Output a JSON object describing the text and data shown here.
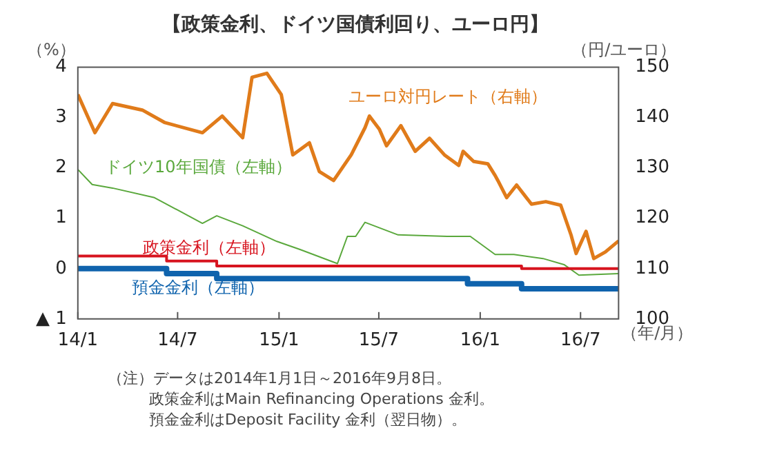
{
  "chart_data": {
    "type": "line",
    "title": "【政策金利、ドイツ国債利回り、ユーロ円】",
    "xlabel": "（年/月）",
    "ylabel": "（%）",
    "y2label": "（円/ユーロ）",
    "xlim": [
      "2014-01-01",
      "2016-09-08"
    ],
    "xticks": [
      {
        "value": "2014-01",
        "label": "14/1"
      },
      {
        "value": "2014-07",
        "label": "14/7"
      },
      {
        "value": "2015-01",
        "label": "15/1"
      },
      {
        "value": "2015-07",
        "label": "15/7"
      },
      {
        "value": "2016-01",
        "label": "16/1"
      },
      {
        "value": "2016-07",
        "label": "16/7"
      }
    ],
    "ylim": [
      -1,
      4
    ],
    "yticks": [
      {
        "value": -1,
        "label": "▲ 1"
      },
      0,
      1,
      2,
      3,
      4
    ],
    "y2lim": [
      100,
      150
    ],
    "y2ticks": [
      100,
      110,
      120,
      130,
      140,
      150
    ],
    "grid": false,
    "legend": false,
    "marker": "none",
    "series": [
      {
        "name": "ユーロ対円レート（右軸）",
        "color": "#e07b1a",
        "axis": "y2",
        "x": [
          "2014-01-01",
          "2014-02-01",
          "2014-03-05",
          "2014-04-28",
          "2014-06-08",
          "2014-08-15",
          "2014-09-20",
          "2014-10-27",
          "2014-11-13",
          "2014-12-10",
          "2015-01-05",
          "2015-01-26",
          "2015-02-25",
          "2015-03-15",
          "2015-04-10",
          "2015-05-12",
          "2015-06-06",
          "2015-06-14",
          "2015-07-02",
          "2015-07-15",
          "2015-08-10",
          "2015-09-05",
          "2015-10-01",
          "2015-10-28",
          "2015-11-23",
          "2015-12-01",
          "2015-12-20",
          "2016-01-15",
          "2016-01-28",
          "2016-02-02",
          "2016-02-18",
          "2016-03-07",
          "2016-04-03",
          "2016-04-29",
          "2016-05-26",
          "2016-06-14",
          "2016-06-23",
          "2016-07-11",
          "2016-07-25",
          "2016-08-15",
          "2016-09-08"
        ],
        "values": [
          144.6,
          137,
          142.8,
          141.5,
          139,
          137,
          140.3,
          136,
          148,
          148.8,
          144.6,
          132.6,
          135,
          129.3,
          127.5,
          132.6,
          138,
          140.3,
          137.7,
          134.4,
          138.4,
          133.3,
          135.9,
          132.6,
          130.5,
          133.3,
          131.3,
          130.8,
          128.5,
          127.5,
          124.1,
          126.6,
          122.8,
          123.3,
          122.6,
          116.6,
          113,
          117.4,
          112,
          113.3,
          115.5
        ]
      },
      {
        "name": "ドイツ10年国債（左軸）",
        "color": "#5aa83c",
        "x": [
          "2014-01-01",
          "2014-01-27",
          "2014-03-05",
          "2014-05-20",
          "2014-08-15",
          "2014-09-10",
          "2014-10-27",
          "2014-12-28",
          "2015-02-08",
          "2015-04-17",
          "2015-05-05",
          "2015-05-20",
          "2015-06-06",
          "2015-08-05",
          "2015-11-02",
          "2015-12-14",
          "2016-01-28",
          "2016-03-02",
          "2016-04-24",
          "2016-06-01",
          "2016-06-28",
          "2016-09-08"
        ],
        "values": [
          1.97,
          1.67,
          1.6,
          1.41,
          0.9,
          1.05,
          0.85,
          0.54,
          0.38,
          0.1,
          0.64,
          0.64,
          0.92,
          0.67,
          0.64,
          0.64,
          0.28,
          0.28,
          0.2,
          0.08,
          -0.13,
          -0.1
        ]
      },
      {
        "name": "政策金利（左軸）",
        "color": "#d7141f",
        "type": "step",
        "x": [
          "2014-01-01",
          "2014-06-11",
          "2014-09-10",
          "2016-03-16",
          "2016-09-08"
        ],
        "values": [
          0.25,
          0.15,
          0.05,
          0,
          0
        ]
      },
      {
        "name": "預金金利（左軸）",
        "color": "#0f63ad",
        "type": "step",
        "x": [
          "2014-01-01",
          "2014-06-11",
          "2014-09-10",
          "2015-12-09",
          "2016-03-16",
          "2016-09-08"
        ],
        "values": [
          0,
          -0.1,
          -0.2,
          -0.3,
          -0.4,
          -0.4
        ]
      }
    ],
    "annotations": [
      "（注）データは2014年1月1日～2016年9月8日。",
      "政策金利はMain Refinancing Operations 金利。",
      "預金金利はDeposit Facility 金利（翌日物）。"
    ]
  }
}
